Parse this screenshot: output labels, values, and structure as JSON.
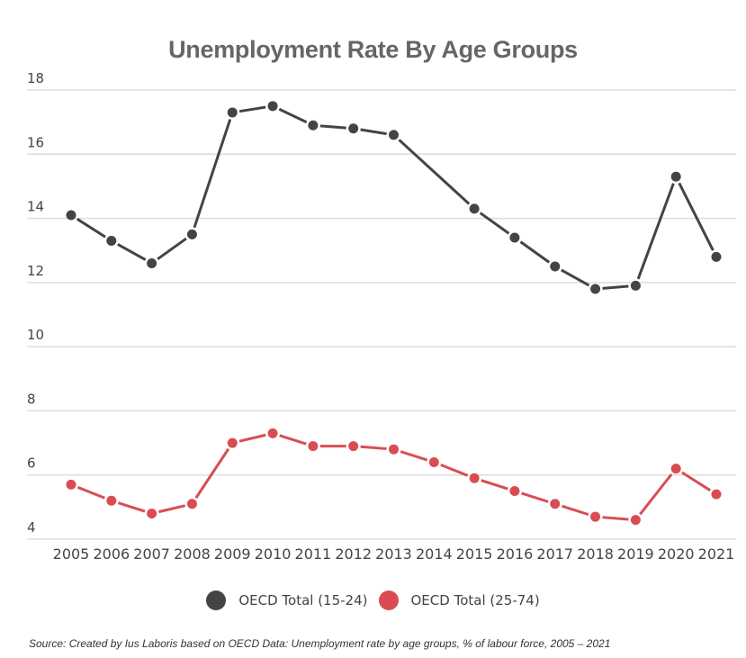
{
  "chart_data": {
    "type": "line",
    "title": "Unemployment Rate By Age Groups",
    "xlabel": "",
    "ylabel": "",
    "ylim": [
      4,
      18
    ],
    "yticks": [
      4,
      6,
      8,
      10,
      12,
      14,
      16,
      18
    ],
    "ytick_labels": [
      "4",
      "6",
      "8",
      "10",
      "12",
      "14",
      "16",
      "18"
    ],
    "categories": [
      "2005",
      "2006",
      "2007",
      "2008",
      "2009",
      "2010",
      "2011",
      "2012",
      "2013",
      "2014",
      "2015",
      "2016",
      "2017",
      "2018",
      "2019",
      "2020",
      "2021"
    ],
    "grid": true,
    "legend_position": "bottom-center",
    "series": [
      {
        "name": "OECD Total (15-24)",
        "color": "#444444",
        "values": [
          14.1,
          13.3,
          12.6,
          13.5,
          17.3,
          17.5,
          16.9,
          16.8,
          16.6,
          null,
          14.3,
          13.4,
          12.5,
          11.8,
          11.9,
          15.3,
          12.8
        ]
      },
      {
        "name": "OECD Total (25-74)",
        "color": "#D94D52",
        "values": [
          5.7,
          5.2,
          4.8,
          5.1,
          7.0,
          7.3,
          6.9,
          6.9,
          6.8,
          6.4,
          5.9,
          5.5,
          5.1,
          4.7,
          4.6,
          6.2,
          5.4
        ]
      }
    ],
    "source": "Source: Created by Ius Laboris based on OECD Data: Unemployment rate by age groups, % of labour force, 2005 – 2021"
  }
}
